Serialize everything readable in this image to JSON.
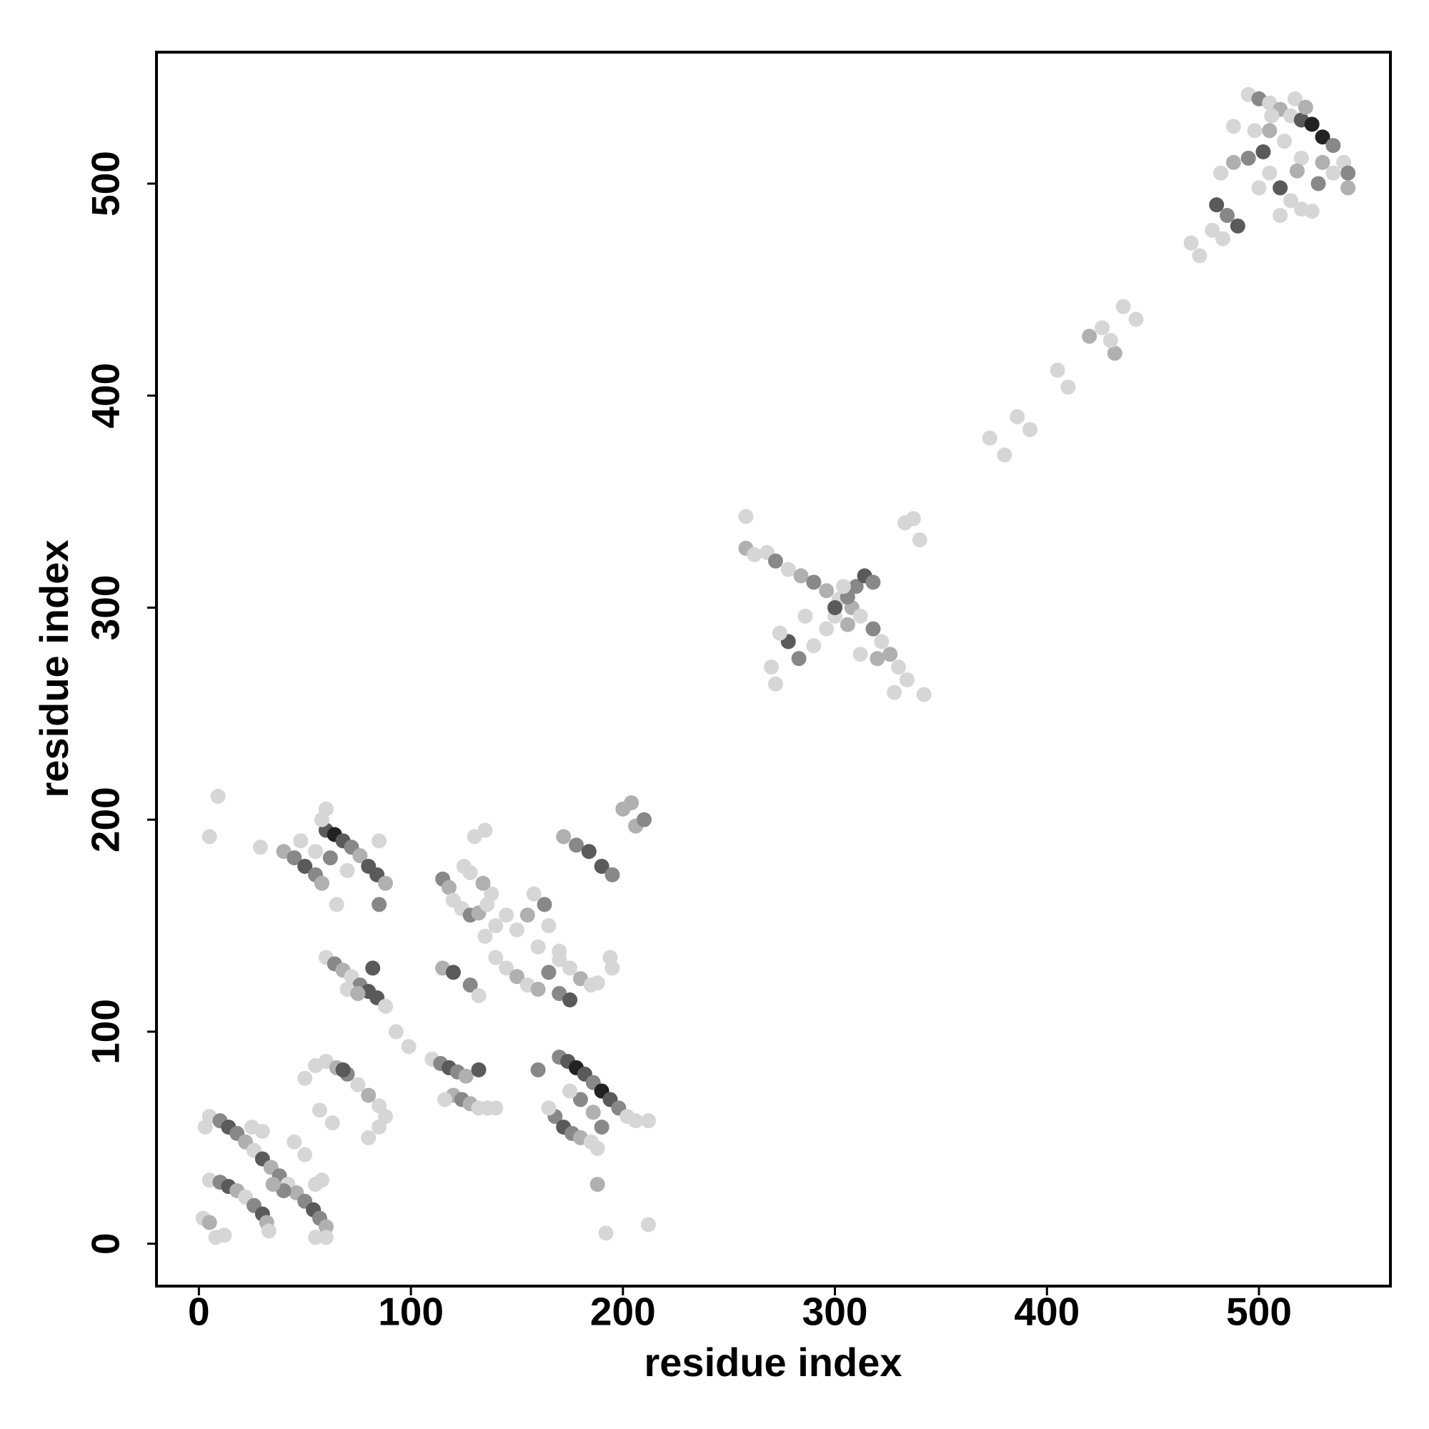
{
  "chart_data": {
    "type": "scatter",
    "x_label": "residue index",
    "y_label": "residue index",
    "xlim": [
      -20,
      562
    ],
    "ylim": [
      -20,
      562
    ],
    "xticks": [
      0,
      100,
      200,
      300,
      400,
      500
    ],
    "yticks": [
      0,
      100,
      200,
      300,
      400,
      500
    ],
    "x": [
      5,
      10,
      14,
      18,
      22,
      26,
      30,
      34,
      38,
      42,
      46,
      50,
      54,
      57,
      60,
      5,
      10,
      14,
      18,
      22,
      26,
      30,
      32,
      33,
      2,
      5,
      8,
      12,
      25,
      30,
      45,
      50,
      55,
      58,
      40,
      35,
      60,
      55,
      3,
      50,
      55,
      60,
      65,
      70,
      75,
      80,
      85,
      88,
      85,
      80,
      68,
      57,
      63,
      40,
      45,
      50,
      55,
      58,
      60,
      64,
      68,
      72,
      76,
      80,
      84,
      88,
      55,
      62,
      58,
      60,
      5,
      9,
      29,
      85,
      85,
      65,
      70,
      48,
      60,
      64,
      68,
      72,
      76,
      80,
      84,
      88,
      82,
      70,
      75,
      93,
      99,
      110,
      114,
      118,
      122,
      126,
      132,
      120,
      124,
      128,
      132,
      136,
      140,
      116,
      115,
      118,
      120,
      124,
      128,
      132,
      136,
      138,
      134,
      128,
      130,
      135,
      125,
      140,
      145,
      135,
      115,
      120,
      128,
      132,
      140,
      145,
      150,
      155,
      160,
      165,
      170,
      175,
      180,
      185,
      160,
      170,
      165,
      158,
      150,
      155,
      170,
      175,
      188,
      163,
      170,
      174,
      178,
      182,
      186,
      190,
      194,
      198,
      202,
      206,
      212,
      168,
      172,
      176,
      180,
      185,
      188,
      190,
      186,
      180,
      175,
      188,
      192,
      212,
      160,
      165,
      172,
      178,
      184,
      190,
      195,
      200,
      204,
      206,
      210,
      195,
      194,
      258,
      262,
      268,
      272,
      278,
      284,
      290,
      296,
      302,
      308,
      312,
      318,
      322,
      326,
      330,
      334,
      328,
      278,
      283,
      290,
      296,
      300,
      306,
      310,
      314,
      318,
      300,
      304,
      270,
      272,
      342,
      333,
      337,
      340,
      258,
      274,
      312,
      306,
      286,
      320,
      373,
      380,
      386,
      392,
      405,
      410,
      420,
      426,
      432,
      430,
      436,
      442,
      468,
      472,
      495,
      500,
      505,
      510,
      515,
      520,
      525,
      530,
      535,
      540,
      542,
      542,
      480,
      485,
      490,
      482,
      488,
      495,
      502,
      505,
      510,
      515,
      520,
      525,
      530,
      535,
      528,
      520,
      512,
      498,
      505,
      488,
      500,
      510,
      517,
      522,
      478,
      483,
      506,
      518
    ],
    "y": [
      60,
      58,
      55,
      52,
      48,
      44,
      40,
      36,
      32,
      28,
      24,
      20,
      16,
      12,
      8,
      30,
      29,
      27,
      25,
      22,
      18,
      14,
      10,
      6,
      12,
      10,
      3,
      4,
      55,
      53,
      48,
      42,
      28,
      30,
      25,
      28,
      3,
      3,
      55,
      78,
      84,
      86,
      83,
      80,
      75,
      70,
      65,
      60,
      55,
      50,
      82,
      63,
      57,
      185,
      182,
      178,
      174,
      170,
      195,
      193,
      190,
      187,
      183,
      178,
      174,
      170,
      185,
      182,
      200,
      205,
      192,
      211,
      187,
      160,
      190,
      160,
      176,
      190,
      135,
      132,
      129,
      126,
      122,
      119,
      116,
      112,
      130,
      120,
      118,
      100,
      93,
      87,
      85,
      83,
      81,
      79,
      82,
      70,
      68,
      66,
      64,
      64,
      64,
      68,
      172,
      168,
      162,
      158,
      155,
      156,
      160,
      165,
      170,
      175,
      192,
      195,
      178,
      150,
      155,
      145,
      130,
      128,
      122,
      117,
      135,
      130,
      126,
      122,
      120,
      128,
      134,
      130,
      125,
      122,
      140,
      138,
      150,
      165,
      148,
      155,
      118,
      115,
      123,
      160,
      88,
      86,
      83,
      80,
      76,
      72,
      68,
      64,
      60,
      58,
      58,
      60,
      55,
      52,
      50,
      48,
      45,
      55,
      62,
      68,
      72,
      28,
      5,
      9,
      82,
      64,
      192,
      188,
      185,
      178,
      174,
      205,
      208,
      197,
      200,
      130,
      135,
      328,
      325,
      326,
      322,
      318,
      315,
      312,
      308,
      304,
      300,
      296,
      290,
      284,
      278,
      272,
      266,
      260,
      284,
      276,
      282,
      290,
      296,
      305,
      310,
      315,
      312,
      300,
      310,
      272,
      264,
      259,
      340,
      342,
      332,
      343,
      288,
      278,
      292,
      296,
      276,
      380,
      372,
      390,
      384,
      412,
      404,
      428,
      432,
      420,
      426,
      442,
      436,
      472,
      466,
      542,
      540,
      538,
      535,
      532,
      530,
      528,
      522,
      518,
      510,
      505,
      498,
      490,
      485,
      480,
      505,
      510,
      512,
      515,
      505,
      498,
      492,
      488,
      487,
      510,
      505,
      500,
      512,
      520,
      525,
      525,
      527,
      498,
      485,
      540,
      536,
      478,
      474,
      532,
      506
    ],
    "colors": [
      "#d6d6d6",
      "#888888",
      "#5a5a5a",
      "#888888",
      "#b0b0b0",
      "#d6d6d6",
      "#5a5a5a",
      "#b0b0b0",
      "#888888",
      "#d6d6d6",
      "#b0b0b0",
      "#888888",
      "#5a5a5a",
      "#888888",
      "#b0b0b0",
      "#d6d6d6",
      "#888888",
      "#5a5a5a",
      "#b0b0b0",
      "#d6d6d6",
      "#888888",
      "#5a5a5a",
      "#b0b0b0",
      "#d6d6d6",
      "#d6d6d6",
      "#b0b0b0",
      "#d6d6d6",
      "#d6d6d6",
      "#d6d6d6",
      "#d6d6d6",
      "#d6d6d6",
      "#d6d6d6",
      "#d6d6d6",
      "#d6d6d6",
      "#888888",
      "#b0b0b0",
      "#d6d6d6",
      "#d6d6d6",
      "#d6d6d6",
      "#d6d6d6",
      "#d6d6d6",
      "#d6d6d6",
      "#b0b0b0",
      "#888888",
      "#d6d6d6",
      "#b0b0b0",
      "#d6d6d6",
      "#d6d6d6",
      "#d6d6d6",
      "#d6d6d6",
      "#5a5a5a",
      "#d6d6d6",
      "#d6d6d6",
      "#b0b0b0",
      "#888888",
      "#5a5a5a",
      "#888888",
      "#b0b0b0",
      "#5a5a5a",
      "#222222",
      "#5a5a5a",
      "#888888",
      "#b0b0b0",
      "#5a5a5a",
      "#5a5a5a",
      "#b0b0b0",
      "#d6d6d6",
      "#888888",
      "#d6d6d6",
      "#d6d6d6",
      "#d6d6d6",
      "#d6d6d6",
      "#d6d6d6",
      "#888888",
      "#d6d6d6",
      "#d6d6d6",
      "#d6d6d6",
      "#d6d6d6",
      "#d6d6d6",
      "#888888",
      "#b0b0b0",
      "#d6d6d6",
      "#888888",
      "#5a5a5a",
      "#5a5a5a",
      "#d6d6d6",
      "#5a5a5a",
      "#d6d6d6",
      "#b0b0b0",
      "#d6d6d6",
      "#d6d6d6",
      "#d6d6d6",
      "#888888",
      "#5a5a5a",
      "#888888",
      "#b0b0b0",
      "#5a5a5a",
      "#b0b0b0",
      "#888888",
      "#b0b0b0",
      "#d6d6d6",
      "#d6d6d6",
      "#d6d6d6",
      "#d6d6d6",
      "#888888",
      "#b0b0b0",
      "#d6d6d6",
      "#d6d6d6",
      "#888888",
      "#b0b0b0",
      "#d6d6d6",
      "#d6d6d6",
      "#b0b0b0",
      "#d6d6d6",
      "#d6d6d6",
      "#d6d6d6",
      "#d6d6d6",
      "#d6d6d6",
      "#d6d6d6",
      "#d6d6d6",
      "#b0b0b0",
      "#5a5a5a",
      "#888888",
      "#d6d6d6",
      "#d6d6d6",
      "#d6d6d6",
      "#b0b0b0",
      "#d6d6d6",
      "#b0b0b0",
      "#888888",
      "#d6d6d6",
      "#d6d6d6",
      "#b0b0b0",
      "#d6d6d6",
      "#d6d6d6",
      "#d6d6d6",
      "#d6d6d6",
      "#d6d6d6",
      "#d6d6d6",
      "#b0b0b0",
      "#888888",
      "#5a5a5a",
      "#d6d6d6",
      "#888888",
      "#888888",
      "#5a5a5a",
      "#222222",
      "#5a5a5a",
      "#888888",
      "#222222",
      "#5a5a5a",
      "#888888",
      "#d6d6d6",
      "#d6d6d6",
      "#d6d6d6",
      "#888888",
      "#5a5a5a",
      "#888888",
      "#b0b0b0",
      "#d6d6d6",
      "#d6d6d6",
      "#888888",
      "#b0b0b0",
      "#888888",
      "#d6d6d6",
      "#b0b0b0",
      "#d6d6d6",
      "#d6d6d6",
      "#888888",
      "#d6d6d6",
      "#b0b0b0",
      "#888888",
      "#5a5a5a",
      "#5a5a5a",
      "#888888",
      "#b0b0b0",
      "#b0b0b0",
      "#b0b0b0",
      "#888888",
      "#d6d6d6",
      "#d6d6d6",
      "#b0b0b0",
      "#d6d6d6",
      "#d6d6d6",
      "#888888",
      "#d6d6d6",
      "#b0b0b0",
      "#888888",
      "#b0b0b0",
      "#d6d6d6",
      "#b0b0b0",
      "#d6d6d6",
      "#888888",
      "#d6d6d6",
      "#b0b0b0",
      "#d6d6d6",
      "#d6d6d6",
      "#d6d6d6",
      "#5a5a5a",
      "#888888",
      "#d6d6d6",
      "#d6d6d6",
      "#d6d6d6",
      "#888888",
      "#888888",
      "#5a5a5a",
      "#888888",
      "#5a5a5a",
      "#d6d6d6",
      "#d6d6d6",
      "#d6d6d6",
      "#d6d6d6",
      "#d6d6d6",
      "#d6d6d6",
      "#d6d6d6",
      "#d6d6d6",
      "#d6d6d6",
      "#d6d6d6",
      "#b0b0b0",
      "#d6d6d6",
      "#b0b0b0",
      "#d6d6d6",
      "#d6d6d6",
      "#d6d6d6",
      "#d6d6d6",
      "#d6d6d6",
      "#d6d6d6",
      "#b0b0b0",
      "#d6d6d6",
      "#b0b0b0",
      "#d6d6d6",
      "#d6d6d6",
      "#d6d6d6",
      "#d6d6d6",
      "#d6d6d6",
      "#d6d6d6",
      "#888888",
      "#d6d6d6",
      "#b0b0b0",
      "#d6d6d6",
      "#5a5a5a",
      "#222222",
      "#222222",
      "#888888",
      "#d6d6d6",
      "#888888",
      "#b0b0b0",
      "#5a5a5a",
      "#888888",
      "#5a5a5a",
      "#d6d6d6",
      "#b0b0b0",
      "#888888",
      "#5a5a5a",
      "#d6d6d6",
      "#5a5a5a",
      "#d6d6d6",
      "#d6d6d6",
      "#d6d6d6",
      "#b0b0b0",
      "#d6d6d6",
      "#888888",
      "#d6d6d6",
      "#d6d6d6",
      "#d6d6d6",
      "#b0b0b0",
      "#d6d6d6",
      "#d6d6d6",
      "#d6d6d6",
      "#d6d6d6",
      "#b0b0b0",
      "#d6d6d6",
      "#d6d6d6",
      "#d6d6d6",
      "#b0b0b0"
    ]
  }
}
